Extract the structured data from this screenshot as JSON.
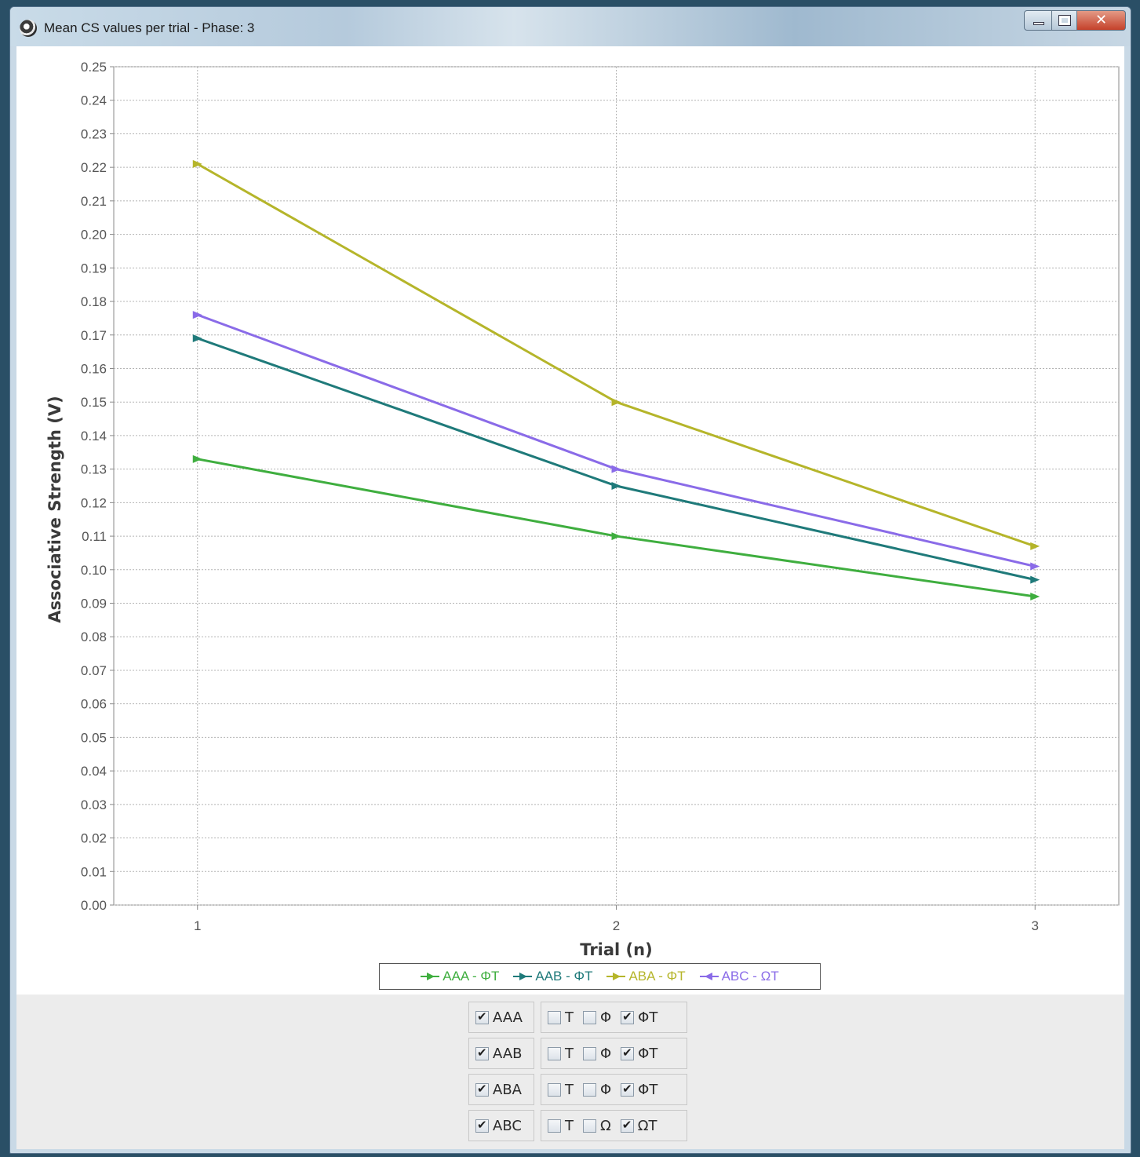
{
  "window": {
    "title": "Mean CS values per trial - Phase: 3"
  },
  "chart_data": {
    "type": "line",
    "x": [
      1,
      2,
      3
    ],
    "xlabel": "Trial (n)",
    "ylabel": "Associative Strength (V)",
    "ylim": [
      0,
      0.25
    ],
    "yticks": [
      "0.00",
      "0.01",
      "0.02",
      "0.03",
      "0.04",
      "0.05",
      "0.06",
      "0.07",
      "0.08",
      "0.09",
      "0.10",
      "0.11",
      "0.12",
      "0.13",
      "0.14",
      "0.15",
      "0.16",
      "0.17",
      "0.18",
      "0.19",
      "0.20",
      "0.21",
      "0.22",
      "0.23",
      "0.24",
      "0.25"
    ],
    "xticks": [
      "1",
      "2",
      "3"
    ],
    "grid": true,
    "legend_position": "bottom",
    "series": [
      {
        "name": "AAA - ΦT",
        "color": "#3fae3f",
        "values": [
          0.133,
          0.11,
          0.092
        ]
      },
      {
        "name": "AAB - ΦT",
        "color": "#1f7a7a",
        "values": [
          0.169,
          0.125,
          0.097
        ]
      },
      {
        "name": "ABA - ΦT",
        "color": "#b5b52a",
        "values": [
          0.221,
          0.15,
          0.107
        ]
      },
      {
        "name": "ABC - ΩT",
        "color": "#8a6be8",
        "values": [
          0.176,
          0.13,
          0.101
        ]
      }
    ]
  },
  "controls": {
    "rows": [
      {
        "group": {
          "label": "AAA",
          "checked": true
        },
        "options": [
          {
            "label": "T",
            "checked": false
          },
          {
            "label": "Φ",
            "checked": false
          },
          {
            "label": "ΦT",
            "checked": true
          }
        ]
      },
      {
        "group": {
          "label": "AAB",
          "checked": true
        },
        "options": [
          {
            "label": "T",
            "checked": false
          },
          {
            "label": "Φ",
            "checked": false
          },
          {
            "label": "ΦT",
            "checked": true
          }
        ]
      },
      {
        "group": {
          "label": "ABA",
          "checked": true
        },
        "options": [
          {
            "label": "T",
            "checked": false
          },
          {
            "label": "Φ",
            "checked": false
          },
          {
            "label": "ΦT",
            "checked": true
          }
        ]
      },
      {
        "group": {
          "label": "ABC",
          "checked": true
        },
        "options": [
          {
            "label": "T",
            "checked": false
          },
          {
            "label": "Ω",
            "checked": false
          },
          {
            "label": "ΩT",
            "checked": true
          }
        ]
      }
    ]
  }
}
